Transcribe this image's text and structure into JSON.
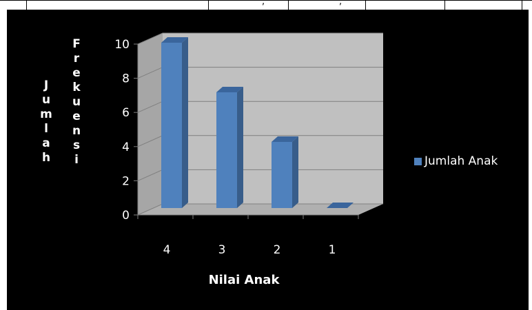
{
  "table_strip": {
    "cells": [
      ",",
      ","
    ]
  },
  "chart_data": {
    "type": "bar",
    "categories": [
      "4",
      "3",
      "2",
      "1"
    ],
    "series": [
      {
        "name": "Jumlah Anak",
        "values": [
          10,
          7,
          4,
          0
        ]
      }
    ],
    "xlabel": "Nilai Anak",
    "ylabel_outer": "Jumlah",
    "ylabel_inner": "Frekuensi",
    "ylim": [
      0,
      10
    ],
    "yticks": [
      "0",
      "2",
      "4",
      "6",
      "8",
      "10"
    ],
    "legend_position": "right",
    "colors": {
      "background": "#000000",
      "plot_wall": "#c0c0c0",
      "bar_front": "#4f81bd",
      "bar_side": "#385d8a",
      "bar_top": "#3a659c",
      "text": "#ffffff"
    },
    "grid": true
  }
}
